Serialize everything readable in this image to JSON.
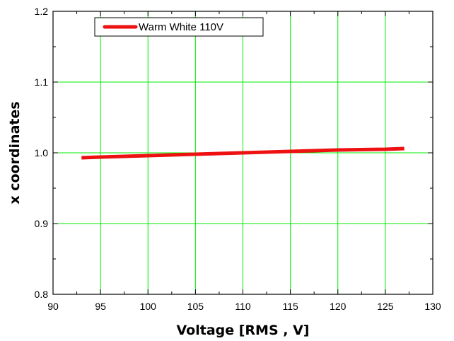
{
  "chart_data": {
    "type": "line",
    "xlabel": "Voltage [RMS , V]",
    "ylabel": "x coordinates",
    "xlim": [
      90,
      130
    ],
    "ylim": [
      0.8,
      1.2
    ],
    "x_ticks": [
      90,
      95,
      100,
      105,
      110,
      115,
      120,
      125,
      130
    ],
    "x_tick_labels": [
      "90",
      "95",
      "100",
      "105",
      "110",
      "115",
      "120",
      "125",
      "130"
    ],
    "y_ticks": [
      0.8,
      0.9,
      1.0,
      1.1,
      1.2
    ],
    "y_tick_labels": [
      "0.8",
      "0.9",
      "1.0",
      "1.1",
      "1.2"
    ],
    "grid": true,
    "grid_color": "#00ee00",
    "legend_position": "top-left",
    "series": [
      {
        "name": "Warm White 110V",
        "color": "#ee1111",
        "x": [
          93,
          95,
          100,
          105,
          110,
          115,
          120,
          125,
          127
        ],
        "y": [
          0.993,
          0.994,
          0.996,
          0.998,
          1.0,
          1.002,
          1.004,
          1.005,
          1.006
        ]
      }
    ]
  }
}
